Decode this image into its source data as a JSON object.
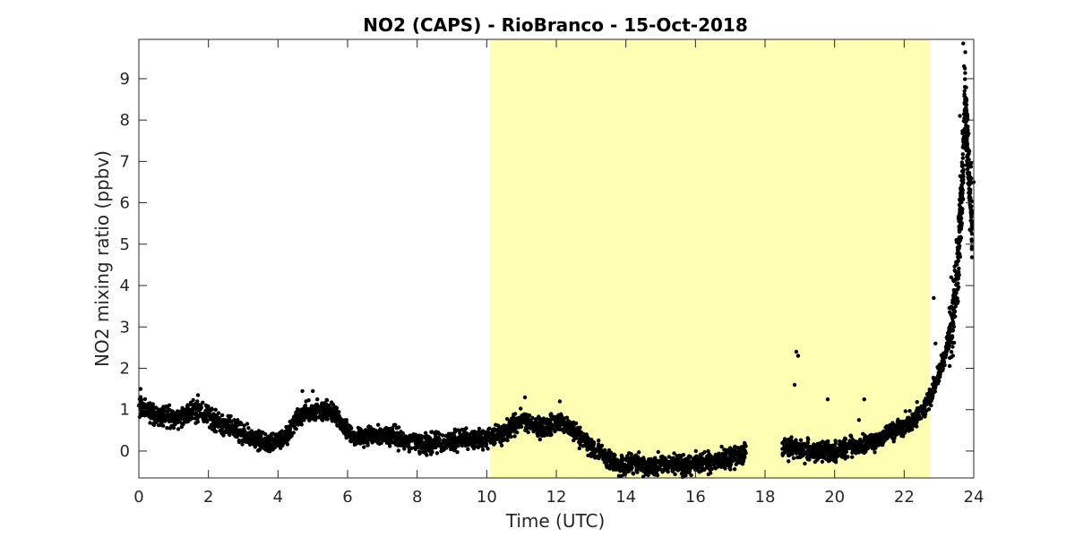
{
  "chart_data": {
    "type": "scatter",
    "title": "NO2 (CAPS) - RioBranco - 15-Oct-2018",
    "xlabel": "Time (UTC)",
    "ylabel": "NO2 mixing ratio (ppbv)",
    "xlim": [
      0,
      24
    ],
    "ylim": [
      -0.65,
      9.95
    ],
    "x_ticks": [
      0,
      2,
      4,
      6,
      8,
      10,
      12,
      14,
      16,
      18,
      20,
      22,
      24
    ],
    "y_ticks": [
      0,
      1,
      2,
      3,
      4,
      5,
      6,
      7,
      8,
      9
    ],
    "grid": false,
    "legend": "none",
    "highlight_band": {
      "x_start": 10.1,
      "x_end": 22.75,
      "color": "#ffffb3"
    },
    "marker_color": "#000000",
    "data_gap": [
      17.5,
      18.45
    ],
    "series": [
      {
        "points": [
          [
            0.0,
            1.1
          ],
          [
            0.25,
            0.95
          ],
          [
            0.5,
            0.85
          ],
          [
            0.75,
            0.85
          ],
          [
            1.0,
            0.8
          ],
          [
            1.25,
            0.85
          ],
          [
            1.5,
            0.95
          ],
          [
            1.75,
            1.0
          ],
          [
            2.0,
            0.85
          ],
          [
            2.25,
            0.7
          ],
          [
            2.5,
            0.6
          ],
          [
            2.75,
            0.55
          ],
          [
            3.0,
            0.4
          ],
          [
            3.25,
            0.3
          ],
          [
            3.5,
            0.2
          ],
          [
            3.75,
            0.15
          ],
          [
            4.0,
            0.25
          ],
          [
            4.25,
            0.35
          ],
          [
            4.5,
            0.7
          ],
          [
            4.75,
            0.95
          ],
          [
            5.0,
            0.9
          ],
          [
            5.25,
            1.0
          ],
          [
            5.5,
            0.95
          ],
          [
            5.75,
            0.8
          ],
          [
            6.0,
            0.5
          ],
          [
            6.25,
            0.3
          ],
          [
            6.5,
            0.35
          ],
          [
            6.75,
            0.4
          ],
          [
            7.0,
            0.35
          ],
          [
            7.25,
            0.4
          ],
          [
            7.5,
            0.3
          ],
          [
            7.75,
            0.25
          ],
          [
            8.0,
            0.2
          ],
          [
            8.25,
            0.15
          ],
          [
            8.5,
            0.2
          ],
          [
            8.75,
            0.2
          ],
          [
            9.0,
            0.25
          ],
          [
            9.25,
            0.3
          ],
          [
            9.5,
            0.3
          ],
          [
            9.75,
            0.3
          ],
          [
            10.0,
            0.3
          ],
          [
            10.25,
            0.35
          ],
          [
            10.5,
            0.4
          ],
          [
            10.75,
            0.6
          ],
          [
            11.0,
            0.75
          ],
          [
            11.25,
            0.65
          ],
          [
            11.5,
            0.55
          ],
          [
            11.75,
            0.6
          ],
          [
            12.0,
            0.7
          ],
          [
            12.25,
            0.65
          ],
          [
            12.5,
            0.5
          ],
          [
            12.75,
            0.3
          ],
          [
            13.0,
            0.1
          ],
          [
            13.25,
            -0.05
          ],
          [
            13.5,
            -0.2
          ],
          [
            13.75,
            -0.3
          ],
          [
            14.0,
            -0.35
          ],
          [
            14.25,
            -0.3
          ],
          [
            14.5,
            -0.35
          ],
          [
            14.75,
            -0.4
          ],
          [
            15.0,
            -0.3
          ],
          [
            15.25,
            -0.35
          ],
          [
            15.5,
            -0.3
          ],
          [
            15.75,
            -0.35
          ],
          [
            16.0,
            -0.3
          ],
          [
            16.25,
            -0.3
          ],
          [
            16.5,
            -0.25
          ],
          [
            16.75,
            -0.2
          ],
          [
            17.0,
            -0.15
          ],
          [
            17.25,
            -0.15
          ],
          [
            17.45,
            -0.05
          ],
          [
            18.5,
            0.05
          ],
          [
            18.75,
            0.1
          ],
          [
            19.0,
            0.05
          ],
          [
            19.25,
            0.0
          ],
          [
            19.5,
            -0.05
          ],
          [
            19.75,
            0.0
          ],
          [
            20.0,
            -0.05
          ],
          [
            20.25,
            0.05
          ],
          [
            20.5,
            0.1
          ],
          [
            20.75,
            0.15
          ],
          [
            21.0,
            0.2
          ],
          [
            21.25,
            0.3
          ],
          [
            21.5,
            0.4
          ],
          [
            21.75,
            0.5
          ],
          [
            22.0,
            0.6
          ],
          [
            22.25,
            0.75
          ],
          [
            22.5,
            0.95
          ],
          [
            22.75,
            1.3
          ],
          [
            23.0,
            1.9
          ],
          [
            23.2,
            2.4
          ],
          [
            23.4,
            3.3
          ],
          [
            23.55,
            4.6
          ],
          [
            23.65,
            6.2
          ],
          [
            23.75,
            8.5
          ],
          [
            23.85,
            7.0
          ],
          [
            23.95,
            5.5
          ]
        ]
      },
      {
        "points": [
          [
            0.05,
            1.5
          ],
          [
            1.7,
            1.35
          ],
          [
            4.7,
            1.45
          ],
          [
            5.0,
            1.45
          ],
          [
            11.1,
            1.3
          ],
          [
            12.1,
            1.2
          ],
          [
            18.9,
            2.4
          ],
          [
            18.95,
            2.3
          ],
          [
            18.85,
            1.6
          ],
          [
            19.8,
            1.25
          ],
          [
            20.85,
            1.25
          ],
          [
            20.7,
            0.75
          ],
          [
            22.85,
            3.7
          ],
          [
            22.9,
            2.6
          ],
          [
            23.7,
            9.85
          ],
          [
            23.72,
            9.3
          ],
          [
            23.6,
            8.1
          ],
          [
            24.0,
            6.5
          ],
          [
            23.5,
            5.1
          ],
          [
            23.35,
            4.2
          ],
          [
            23.05,
            2.1
          ],
          [
            14.5,
            -0.62
          ],
          [
            13.8,
            -0.6
          ],
          [
            0.9,
            0.55
          ]
        ]
      }
    ]
  }
}
